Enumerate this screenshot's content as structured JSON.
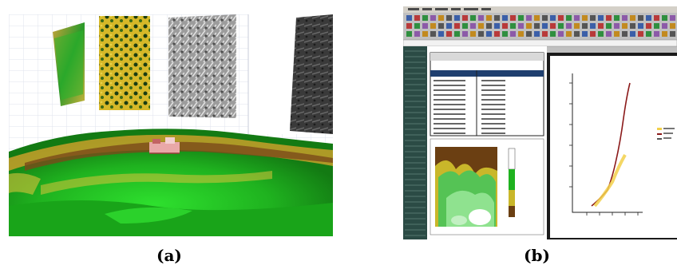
{
  "captions": {
    "a": "(a)",
    "b": "(b)"
  },
  "colors": {
    "terrain_green": "#1fb21f",
    "terrain_yellow": "#d8c33a",
    "terrain_brown": "#7a4a1a",
    "spreadsheet_bg": "#ffffff",
    "toolbar_gray": "#c0c0c0",
    "sheet_header_blue": "#1f3f6f",
    "chart_line_red": "#8b1a1a",
    "chart_series_yellow": "#f2d04a"
  }
}
